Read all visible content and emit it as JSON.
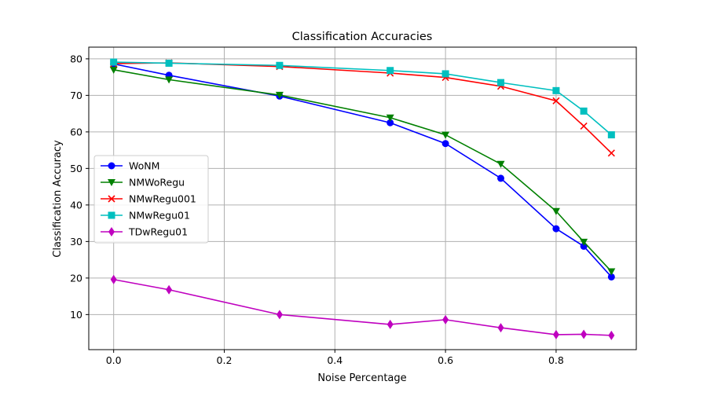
{
  "chart_data": {
    "type": "line",
    "title": "Classification Accuracies",
    "xlabel": "Noise Percentage",
    "ylabel": "Classification Accuracy",
    "xlim": [
      -0.045,
      0.945
    ],
    "ylim": [
      0.4,
      83.2
    ],
    "xticks": [
      0.0,
      0.2,
      0.4,
      0.6,
      0.8
    ],
    "xtick_labels": [
      "0.0",
      "0.2",
      "0.4",
      "0.6",
      "0.8"
    ],
    "yticks": [
      10,
      20,
      30,
      40,
      50,
      60,
      70,
      80
    ],
    "ytick_labels": [
      "10",
      "20",
      "30",
      "40",
      "50",
      "60",
      "70",
      "80"
    ],
    "grid": true,
    "legend_position": "center-left",
    "x": [
      0.0,
      0.1,
      0.3,
      0.5,
      0.6,
      0.7,
      0.8,
      0.85,
      0.9
    ],
    "series": [
      {
        "name": "WoNM",
        "color": "#0000ff",
        "marker": "circle",
        "values": [
          78.6,
          75.5,
          69.8,
          62.5,
          56.8,
          47.3,
          33.5,
          28.7,
          20.3
        ]
      },
      {
        "name": "NMWoRegu",
        "color": "#008000",
        "marker": "triangle-down",
        "values": [
          77.0,
          74.3,
          70.1,
          63.9,
          59.2,
          51.2,
          38.3,
          29.9,
          21.8
        ]
      },
      {
        "name": "NMwRegu001",
        "color": "#ff0000",
        "marker": "x",
        "values": [
          78.7,
          78.9,
          77.9,
          76.1,
          74.9,
          72.5,
          68.5,
          61.6,
          54.2
        ]
      },
      {
        "name": "NMwRegu01",
        "color": "#00bfbf",
        "marker": "square",
        "values": [
          79.1,
          78.8,
          78.2,
          76.8,
          75.9,
          73.5,
          71.3,
          65.7,
          59.2
        ]
      },
      {
        "name": "TDwRegu01",
        "color": "#bf00bf",
        "marker": "diamond",
        "values": [
          19.6,
          16.8,
          10.0,
          7.3,
          8.6,
          6.4,
          4.5,
          4.6,
          4.3
        ]
      }
    ]
  }
}
